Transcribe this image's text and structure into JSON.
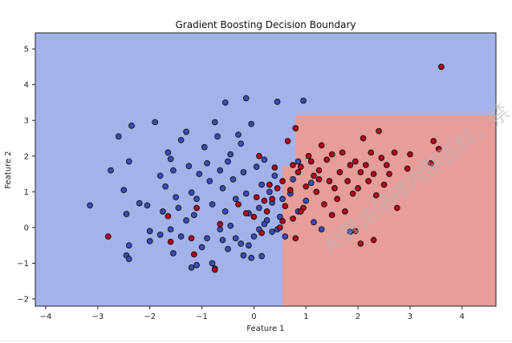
{
  "chart_data": {
    "type": "scatter",
    "title": "Gradient Boosting Decision Boundary",
    "xlabel": "Feature 1",
    "ylabel": "Feature 2",
    "xlim": [
      -4.2,
      4.65
    ],
    "ylim": [
      -2.2,
      5.45
    ],
    "xticks": [
      -4,
      -3,
      -2,
      -1,
      0,
      1,
      2,
      3,
      4
    ],
    "yticks": [
      -2,
      -1,
      0,
      1,
      2,
      3,
      4,
      5
    ],
    "grid": false,
    "colors": {
      "region_class_0": "#a3b3ea",
      "region_class_1": "#e79d9a",
      "point_class_0": "#3a4bb8",
      "point_class_1": "#b3001b",
      "point_edge": "#111111"
    },
    "decision_regions": [
      {
        "class": 1,
        "x": [
          0.55,
          4.65
        ],
        "y": [
          -2.2,
          1.73
        ]
      },
      {
        "class": 1,
        "x": [
          0.8,
          4.65
        ],
        "y": [
          1.73,
          3.15
        ]
      }
    ],
    "series": [
      {
        "class": 0,
        "points": [
          [
            -3.15,
            0.62
          ],
          [
            -2.6,
            2.55
          ],
          [
            -2.5,
            1.05
          ],
          [
            -2.45,
            0.38
          ],
          [
            -2.35,
            2.85
          ],
          [
            -2.4,
            1.85
          ],
          [
            -2.75,
            1.6
          ],
          [
            -2.2,
            0.68
          ],
          [
            -2.05,
            0.62
          ],
          [
            -1.9,
            2.95
          ],
          [
            -1.8,
            1.45
          ],
          [
            -1.7,
            1.15
          ],
          [
            -1.65,
            2.1
          ],
          [
            -1.6,
            1.92
          ],
          [
            -1.55,
            1.6
          ],
          [
            -1.5,
            0.85
          ],
          [
            -1.45,
            0.55
          ],
          [
            -1.4,
            2.45
          ],
          [
            -1.3,
            2.68
          ],
          [
            -1.25,
            1.72
          ],
          [
            -1.2,
            0.98
          ],
          [
            -1.15,
            0.35
          ],
          [
            -1.1,
            0.8
          ],
          [
            -1.05,
            1.5
          ],
          [
            -0.95,
            2.25
          ],
          [
            -0.9,
            1.8
          ],
          [
            -0.85,
            1.3
          ],
          [
            -0.8,
            0.65
          ],
          [
            -0.75,
            2.95
          ],
          [
            -0.7,
            2.55
          ],
          [
            -0.65,
            1.6
          ],
          [
            -0.6,
            1.1
          ],
          [
            -0.55,
            0.45
          ],
          [
            -0.5,
            1.85
          ],
          [
            -0.45,
            2.05
          ],
          [
            -0.4,
            1.35
          ],
          [
            -0.35,
            0.8
          ],
          [
            -0.3,
            2.6
          ],
          [
            -0.25,
            2.35
          ],
          [
            -0.2,
            1.55
          ],
          [
            -0.15,
            0.95
          ],
          [
            -0.1,
            0.4
          ],
          [
            -0.05,
            2.9
          ],
          [
            0.05,
            1.7
          ],
          [
            0.1,
            0.55
          ],
          [
            0.15,
            1.2
          ],
          [
            0.2,
            1.9
          ],
          [
            0.25,
            0.2
          ],
          [
            0.3,
            1.0
          ],
          [
            0.35,
            0.7
          ],
          [
            0.4,
            1.45
          ],
          [
            -0.55,
            3.5
          ],
          [
            -0.15,
            3.62
          ],
          [
            0.45,
            3.52
          ],
          [
            0.95,
            3.55
          ],
          [
            -2.4,
            -0.5
          ],
          [
            -2.45,
            -0.78
          ],
          [
            -2.4,
            -0.88
          ],
          [
            -2.0,
            -0.1
          ],
          [
            -2.0,
            -0.38
          ],
          [
            -1.8,
            -0.2
          ],
          [
            -1.75,
            0.45
          ],
          [
            -1.6,
            -0.05
          ],
          [
            -1.55,
            -0.72
          ],
          [
            -1.4,
            -0.25
          ],
          [
            -1.3,
            0.2
          ],
          [
            -1.2,
            -1.12
          ],
          [
            -1.1,
            -1.05
          ],
          [
            -1.0,
            -0.55
          ],
          [
            -0.9,
            -0.3
          ],
          [
            -0.8,
            -1.0
          ],
          [
            -0.75,
            -1.15
          ],
          [
            -0.65,
            -0.05
          ],
          [
            -0.6,
            -0.35
          ],
          [
            -0.5,
            -0.6
          ],
          [
            -0.45,
            0.05
          ],
          [
            -0.35,
            -0.3
          ],
          [
            -0.25,
            -0.45
          ],
          [
            -0.2,
            -0.78
          ],
          [
            -0.1,
            -0.5
          ],
          [
            -0.05,
            -0.85
          ],
          [
            0.0,
            -0.25
          ],
          [
            0.1,
            -0.05
          ],
          [
            0.15,
            -0.8
          ],
          [
            0.2,
            0.1
          ],
          [
            0.35,
            -0.12
          ],
          [
            0.45,
            -0.05
          ],
          [
            0.5,
            0.3
          ],
          [
            0.55,
            0.8
          ],
          [
            0.6,
            -0.25
          ],
          [
            0.7,
            0.95
          ],
          [
            0.75,
            1.35
          ],
          [
            0.85,
            0.45
          ],
          [
            1.0,
            0.75
          ],
          [
            1.15,
            0.15
          ],
          [
            1.3,
            -0.05
          ],
          [
            1.85,
            -0.12
          ],
          [
            0.85,
            1.85
          ],
          [
            1.1,
            1.25
          ]
        ]
      },
      {
        "class": 1,
        "points": [
          [
            -2.8,
            -0.25
          ],
          [
            -1.65,
            0.32
          ],
          [
            -1.6,
            -0.4
          ],
          [
            -1.2,
            -0.3
          ],
          [
            -1.1,
            0.55
          ],
          [
            -1.15,
            -0.75
          ],
          [
            -0.75,
            -1.18
          ],
          [
            -0.65,
            0.1
          ],
          [
            -0.3,
            0.65
          ],
          [
            -0.15,
            0.4
          ],
          [
            0.0,
            0.3
          ],
          [
            0.05,
            0.85
          ],
          [
            0.1,
            2.0
          ],
          [
            0.15,
            -0.15
          ],
          [
            0.2,
            0.75
          ],
          [
            0.25,
            0.45
          ],
          [
            0.3,
            1.2
          ],
          [
            0.35,
            0.8
          ],
          [
            0.4,
            1.68
          ],
          [
            0.45,
            1.1
          ],
          [
            0.5,
            0.0
          ],
          [
            0.55,
            1.3
          ],
          [
            0.6,
            0.6
          ],
          [
            0.65,
            2.42
          ],
          [
            0.7,
            1.05
          ],
          [
            0.75,
            0.25
          ],
          [
            0.8,
            -0.3
          ],
          [
            0.85,
            1.55
          ],
          [
            0.9,
            1.7
          ],
          [
            0.95,
            0.55
          ],
          [
            1.0,
            1.15
          ],
          [
            1.05,
            2.0
          ],
          [
            1.1,
            1.85
          ],
          [
            1.15,
            1.45
          ],
          [
            1.2,
            1.0
          ],
          [
            1.25,
            1.6
          ],
          [
            1.3,
            2.3
          ],
          [
            1.35,
            0.65
          ],
          [
            1.4,
            1.9
          ],
          [
            1.45,
            1.3
          ],
          [
            1.5,
            2.05
          ],
          [
            1.55,
            1.1
          ],
          [
            1.6,
            0.8
          ],
          [
            1.65,
            1.55
          ],
          [
            1.7,
            2.1
          ],
          [
            1.75,
            0.45
          ],
          [
            1.8,
            1.3
          ],
          [
            1.85,
            1.75
          ],
          [
            1.9,
            0.95
          ],
          [
            1.95,
            1.85
          ],
          [
            2.0,
            1.1
          ],
          [
            2.05,
            1.55
          ],
          [
            2.1,
            2.5
          ],
          [
            2.15,
            1.75
          ],
          [
            2.2,
            1.3
          ],
          [
            2.25,
            2.1
          ],
          [
            2.3,
            1.5
          ],
          [
            2.35,
            0.9
          ],
          [
            2.4,
            2.7
          ],
          [
            2.45,
            1.95
          ],
          [
            2.5,
            1.2
          ],
          [
            2.55,
            1.75
          ],
          [
            2.6,
            1.5
          ],
          [
            2.7,
            2.1
          ],
          [
            2.75,
            0.55
          ],
          [
            2.95,
            1.65
          ],
          [
            3.0,
            2.05
          ],
          [
            3.4,
            1.8
          ],
          [
            3.45,
            2.42
          ],
          [
            3.55,
            2.2
          ],
          [
            3.6,
            4.5
          ],
          [
            2.05,
            -0.45
          ],
          [
            2.3,
            -0.35
          ],
          [
            0.75,
            1.75
          ],
          [
            0.8,
            2.78
          ],
          [
            1.95,
            -0.1
          ],
          [
            0.55,
            0.18
          ],
          [
            1.25,
            1.35
          ],
          [
            1.5,
            0.35
          ],
          [
            0.9,
            0.45
          ]
        ]
      }
    ]
  },
  "watermark": "AI算法研修内部资料，禁"
}
